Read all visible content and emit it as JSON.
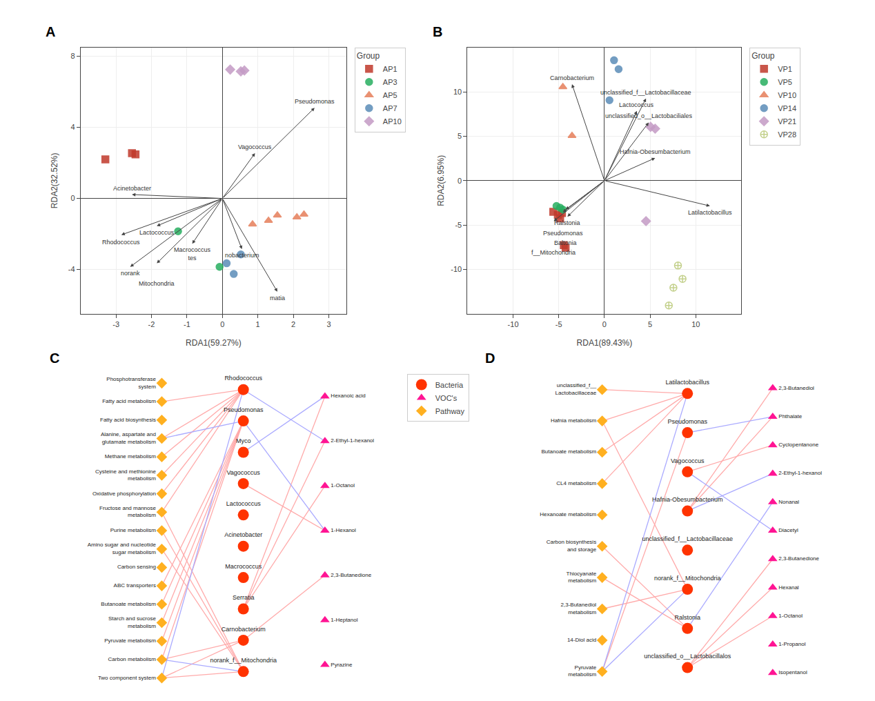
{
  "chart_data": [
    {
      "type": "scatter",
      "title": "A",
      "x_label": "RDA1(59.27%)",
      "y_label": "RDA2(32.52%)",
      "xlim": [
        -4,
        3.5
      ],
      "ylim": [
        -6.5,
        8.5
      ],
      "xticks": [
        -3,
        -2,
        -1,
        0,
        1,
        2,
        3
      ],
      "yticks": [
        -4,
        0,
        4,
        8
      ],
      "grid": true,
      "legend": "right",
      "legend_title": "Group",
      "series": [
        {
          "name": "AP1",
          "color": "#C0392B",
          "marker": "square",
          "x": [
            -3.3,
            -2.55,
            -2.45
          ],
          "values": [
            2.2,
            2.55,
            2.48
          ]
        },
        {
          "name": "AP3",
          "color": "#27AE60",
          "marker": "circle",
          "x": [
            -1.25,
            -0.08
          ],
          "values": [
            -1.85,
            -3.85
          ]
        },
        {
          "name": "AP5",
          "color": "#E67E5A",
          "marker": "triangle-up",
          "x": [
            1.55,
            1.3,
            2.3,
            0.85,
            2.1
          ],
          "values": [
            -0.95,
            -1.25,
            -0.9,
            -1.45,
            -1.05
          ]
        },
        {
          "name": "AP7",
          "color": "#5B8DB8",
          "marker": "circle",
          "x": [
            0.12,
            0.32,
            0.52
          ],
          "values": [
            -3.65,
            -4.25,
            -3.15
          ]
        },
        {
          "name": "AP10",
          "color": "#C49BC5",
          "marker": "diamond",
          "x": [
            0.22,
            0.52,
            0.62
          ],
          "values": [
            7.25,
            7.15,
            7.2
          ]
        }
      ],
      "arrows": [
        {
          "label": "Pseudomonas",
          "end": [
            2.6,
            5.1
          ]
        },
        {
          "label": "Vagococcus",
          "end": [
            0.92,
            2.55
          ]
        },
        {
          "label": "Acinetobacter",
          "end": [
            -2.55,
            0.22
          ]
        },
        {
          "label": "Lactococcus",
          "end": [
            -1.85,
            -1.55
          ]
        },
        {
          "label": "Rhodococcus",
          "end": [
            -2.85,
            -2.05
          ]
        },
        {
          "label": "Macrococcus\ntes",
          "end": [
            -0.85,
            -2.55
          ]
        },
        {
          "label": "norank",
          "end": [
            -2.6,
            -3.85
          ]
        },
        {
          "label": "Mitochondria",
          "end": [
            -1.85,
            -3.65
          ]
        },
        {
          "label": "nobacterium",
          "end": [
            0.55,
            -2.85
          ]
        },
        {
          "label": "matia",
          "end": [
            1.55,
            -5.25
          ]
        }
      ]
    },
    {
      "type": "scatter",
      "title": "B",
      "x_label": "RDA1(89.43%)",
      "y_label": "RDA2(6.95%)",
      "xlim": [
        -15,
        15
      ],
      "ylim": [
        -15,
        15
      ],
      "xticks": [
        -10,
        -5,
        0,
        5,
        10
      ],
      "yticks": [
        -10,
        -5,
        0,
        5,
        10
      ],
      "grid": true,
      "legend": "right",
      "legend_title": "Group",
      "series": [
        {
          "name": "VP1",
          "color": "#C0392B",
          "marker": "square",
          "x": [
            -5.6,
            -5.1,
            -4.85,
            -4.65,
            -4.45,
            -4.25
          ],
          "values": [
            -3.5,
            -3.85,
            -4.25,
            -3.65,
            -7.25,
            -7.55
          ]
        },
        {
          "name": "VP5",
          "color": "#27AE60",
          "marker": "circle",
          "x": [
            -4.55,
            -5.25,
            -4.85
          ],
          "values": [
            -3.25,
            -2.85,
            -3.05
          ]
        },
        {
          "name": "VP10",
          "color": "#E67E5A",
          "marker": "triangle-up",
          "x": [
            -4.55,
            -3.55
          ],
          "values": [
            10.55,
            5.05
          ]
        },
        {
          "name": "VP14",
          "color": "#5B8DB8",
          "marker": "circle",
          "x": [
            1.05,
            1.55,
            0.55
          ],
          "values": [
            13.55,
            12.55,
            9.05
          ]
        },
        {
          "name": "VP21",
          "color": "#C49BC5",
          "marker": "diamond",
          "x": [
            5.05,
            5.55,
            4.55
          ],
          "values": [
            6.05,
            5.85,
            -4.55
          ]
        },
        {
          "name": "VP28",
          "color": "#B8C877",
          "marker": "circle-cross-open",
          "x": [
            8.05,
            8.55,
            7.55,
            7.05
          ],
          "values": [
            -9.55,
            -11.05,
            -12.05,
            -14.05
          ]
        }
      ],
      "arrows": [
        {
          "label": "Carnobacterium",
          "end": [
            -3.55,
            10.85
          ]
        },
        {
          "label": "unclassified_f__Lactobacillaceae",
          "end": [
            4.55,
            9.25
          ]
        },
        {
          "label": "Lactococcus",
          "end": [
            3.55,
            7.85
          ]
        },
        {
          "label": "unclassified_o__Lactobaciliales",
          "end": [
            4.85,
            6.55
          ]
        },
        {
          "label": "Hafnia-Obesumbacterium",
          "end": [
            5.55,
            2.55
          ]
        },
        {
          "label": "Latilactobacillus",
          "end": [
            11.55,
            -2.85
          ]
        },
        {
          "label": "Ralstonia",
          "end": [
            -4.05,
            -4.05
          ]
        },
        {
          "label": "Pseudomonas",
          "end": [
            -4.55,
            -3.55
          ]
        },
        {
          "label": "Baltonia",
          "end": [
            -4.25,
            -3.25
          ]
        },
        {
          "label": "f__Mitochondria",
          "end": [
            -5.55,
            -4.55
          ]
        }
      ]
    },
    {
      "type": "network",
      "title": "C",
      "legend": "right",
      "series": [
        {
          "name": "Bacteria",
          "color": "#FF3300",
          "marker": "circle",
          "nodes": [
            "Rhodococcus",
            "Pseudomonas",
            "Myco",
            "Vagococcus",
            "Lactococcus",
            "Acinetobacter",
            "Macrococcus",
            "Serratia",
            "Carnobacterium",
            "norank_f__Mitochondria"
          ]
        },
        {
          "name": "VOC's",
          "color": "#FF1493",
          "marker": "triangle-up",
          "nodes": [
            "Hexanoic acid",
            "2-Ethyl-1-hexanol",
            "1-Octanol",
            "1-Hexanol",
            "2,3-Butanedione",
            "1-Heptanol",
            "Pyrazine"
          ]
        },
        {
          "name": "Pathway",
          "color": "#FFB020",
          "marker": "diamond",
          "nodes": [
            "Phosphotransferase\nsystem",
            "Fatty acid metabolism",
            "Fatty acid biosynthesis",
            "Alanine, aspartate and\nglutamate metabolism",
            "Methane metabolism",
            "Cysteine and methionine\nmetabolism",
            "Oxidative phosphorylation",
            "Fructose and mannose\nmetabolism",
            "Purine metabolism",
            "Amino sugar and nucleotide\nsugar metabolism",
            "Carbon sensing",
            "ABC transporters",
            "Butanoate metabolism",
            "Starch and sucrose\nmetabolism",
            "Pyruvate metabolism",
            "Carbon metabolism",
            "Two component system"
          ]
        }
      ],
      "edges": [
        {
          "source": "Rhodococcus",
          "target": "Alanine, aspartate and\nglutamate metabolism",
          "color": "#FFAAAA"
        },
        {
          "source": "Rhodococcus",
          "target": "Methane metabolism",
          "color": "#FFAAAA"
        },
        {
          "source": "Rhodococcus",
          "target": "Cysteine and methionine\nmetabolism",
          "color": "#FFAAAA"
        },
        {
          "source": "Rhodococcus",
          "target": "Oxidative phosphorylation",
          "color": "#FFAAAA"
        },
        {
          "source": "Rhodococcus",
          "target": "Fructose and mannose\nmetabolism",
          "color": "#FFAAAA"
        },
        {
          "source": "Rhodococcus",
          "target": "Fatty acid metabolism",
          "color": "#FFAAAA"
        },
        {
          "source": "Rhodococcus",
          "target": "Two component system",
          "color": "#AAAAFF"
        },
        {
          "source": "Pseudomonas",
          "target": "ABC transporters",
          "color": "#FFAAAA"
        },
        {
          "source": "Pseudomonas",
          "target": "Butanoate metabolism",
          "color": "#FFAAAA"
        },
        {
          "source": "Pseudomonas",
          "target": "Starch and sucrose\nmetabolism",
          "color": "#FFAAAA"
        },
        {
          "source": "Pseudomonas",
          "target": "Pyruvate metabolism",
          "color": "#FFAAAA"
        },
        {
          "source": "Pseudomonas",
          "target": "Carbon metabolism",
          "color": "#FFAAAA"
        },
        {
          "source": "Pseudomonas",
          "target": "Alanine, aspartate and\nglutamate metabolism",
          "color": "#AAAAFF"
        },
        {
          "source": "norank_f__Mitochondria",
          "target": "Two component system",
          "color": "#FFAAAA"
        },
        {
          "source": "norank_f__Mitochondria",
          "target": "Amino sugar and nucleotide\nsugar metabolism",
          "color": "#FFAAAA"
        },
        {
          "source": "norank_f__Mitochondria",
          "target": "Purine metabolism",
          "color": "#FFAAAA"
        },
        {
          "source": "norank_f__Mitochondria",
          "target": "Fructose and mannose\nmetabolism",
          "color": "#FFAAAA"
        },
        {
          "source": "norank_f__Mitochondria",
          "target": "Carbon metabolism",
          "color": "#AAAAFF"
        },
        {
          "source": "Carnobacterium",
          "target": "Two component system",
          "color": "#FFAAAA"
        },
        {
          "source": "Carnobacterium",
          "target": "Carbon metabolism",
          "color": "#FFAAAA"
        },
        {
          "source": "Serratia",
          "target": "Hexanoic acid",
          "color": "#FFAAAA"
        },
        {
          "source": "Serratia",
          "target": "2-Ethyl-1-hexanol",
          "color": "#FFAAAA"
        },
        {
          "source": "Serratia",
          "target": "1-Octanol",
          "color": "#FFAAAA"
        },
        {
          "source": "Vagococcus",
          "target": "1-Hexanol",
          "color": "#FFAAAA"
        },
        {
          "source": "Carnobacterium",
          "target": "2,3-Butanedione",
          "color": "#FFAAAA"
        },
        {
          "source": "Rhodococcus",
          "target": "2-Ethyl-1-hexanol",
          "color": "#AAAAFF"
        },
        {
          "source": "Pseudomonas",
          "target": "1-Hexanol",
          "color": "#AAAAFF"
        },
        {
          "source": "Myco",
          "target": "Hexanoic acid",
          "color": "#AAAAFF"
        }
      ]
    },
    {
      "type": "network",
      "title": "D",
      "series": [
        {
          "name": "Bacteria",
          "color": "#FF3300",
          "marker": "circle",
          "nodes": [
            "Latilactobacillus",
            "Pseudomonas",
            "Vagococcus",
            "Hafnia-Obesumbacterium",
            "unclassified_f__Lactobacillaceae",
            "norank_f__Mitochondria",
            "Ralstonia",
            "unclassified_o__Lactobacillalos"
          ]
        },
        {
          "name": "VOC's",
          "color": "#FF1493",
          "marker": "triangle-up",
          "nodes": [
            "2,3-Butanediol",
            "Phthalate",
            "Cyclopentanone",
            "2-Ethyl-1-hexanol",
            "Nonanal",
            "Diacetyl",
            "2,3-Butanedione",
            "Hexanal",
            "1-Octanol",
            "1-Propanol",
            "Isopentanol"
          ]
        },
        {
          "name": "Pathway",
          "color": "#FFB020",
          "marker": "diamond",
          "nodes": [
            "unclassified_f__\nLactobacillaceae",
            "Hafnia metabolism",
            "Butanoate metabolism",
            "CL4 metabolism",
            "Hexanoate metabolism",
            "Carbon biosynthesis\nand storage",
            "Thiocyanate\nmetabolism",
            "2,3-Butanediol\nmetabolism",
            "14-Diol acid",
            "Pyruvate\nmetabolism"
          ]
        }
      ],
      "edges": [
        {
          "source": "Latilactobacillus",
          "target": "unclassified_f__\nLactobacillaceae",
          "color": "#FFAAAA"
        },
        {
          "source": "Latilactobacillus",
          "target": "Hafnia metabolism",
          "color": "#FFAAAA"
        },
        {
          "source": "Latilactobacillus",
          "target": "Butanoate metabolism",
          "color": "#FFAAAA"
        },
        {
          "source": "Latilactobacillus",
          "target": "CL4 metabolism",
          "color": "#FFAAAA"
        },
        {
          "source": "Pseudomonas",
          "target": "Pyruvate\nmetabolism",
          "color": "#FFAAAA"
        },
        {
          "source": "Ralstonia",
          "target": "Carbon biosynthesis\nand storage",
          "color": "#FFAAAA"
        },
        {
          "source": "Ralstonia",
          "target": "Thiocyanate\nmetabolism",
          "color": "#FFAAAA"
        },
        {
          "source": "norank_f__Mitochondria",
          "target": "Hafnia metabolism",
          "color": "#FFAAAA"
        },
        {
          "source": "norank_f__Mitochondria",
          "target": "2,3-Butanediol\nmetabolism",
          "color": "#FFAAAA"
        },
        {
          "source": "unclassified_o__Lactobacillalos",
          "target": "2,3-Butanedione",
          "color": "#FFAAAA"
        },
        {
          "source": "unclassified_o__Lactobacillalos",
          "target": "Hexanal",
          "color": "#FFAAAA"
        },
        {
          "source": "unclassified_o__Lactobacillalos",
          "target": "1-Octanol",
          "color": "#FFAAAA"
        },
        {
          "source": "Latilactobacillus",
          "target": "Pyruvate\nmetabolism",
          "color": "#AAAAFF"
        },
        {
          "source": "Pseudomonas",
          "target": "Phthalate",
          "color": "#AAAAFF"
        },
        {
          "source": "Vagococcus",
          "target": "Diacetyl",
          "color": "#AAAAFF"
        },
        {
          "source": "Hafnia-Obesumbacterium",
          "target": "2-Ethyl-1-hexanol",
          "color": "#AAAAFF"
        },
        {
          "source": "norank_f__Mitochondria",
          "target": "Pyruvate\nmetabolism",
          "color": "#AAAAFF"
        },
        {
          "source": "Ralstonia",
          "target": "Nonanal",
          "color": "#AAAAFF"
        },
        {
          "source": "Vagococcus",
          "target": "Cyclopentanone",
          "color": "#FFAAAA"
        },
        {
          "source": "Hafnia-Obesumbacterium",
          "target": "2,3-Butanediol",
          "color": "#FFAAAA"
        },
        {
          "source": "Hafnia-Obesumbacterium",
          "target": "Phthalate",
          "color": "#FFAAAA"
        }
      ]
    }
  ]
}
